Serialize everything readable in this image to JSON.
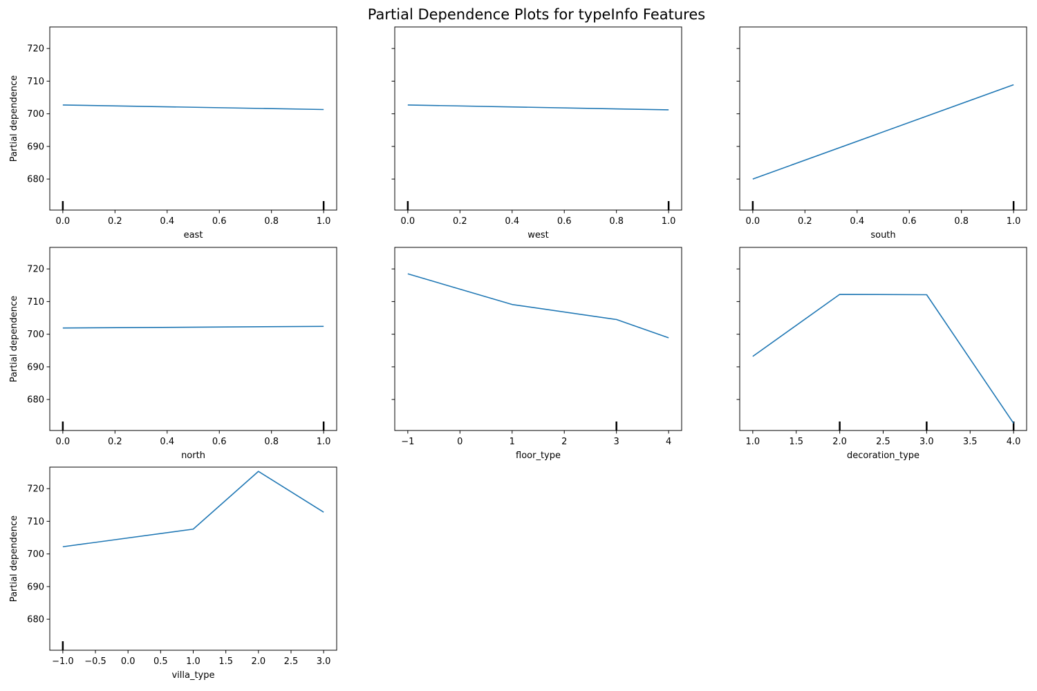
{
  "title": "Partial Dependence Plots for typeInfo Features",
  "chart_data": [
    {
      "type": "line",
      "xlabel": "east",
      "ylabel": "Partial dependence",
      "x": [
        0.0,
        1.0
      ],
      "y": [
        702.7,
        701.3
      ],
      "rug": [
        0.0,
        1.0
      ],
      "xlim": [
        -0.05,
        1.05
      ],
      "ylim": [
        670.5,
        726.6
      ],
      "xticks": [
        0.0,
        0.2,
        0.4,
        0.6,
        0.8,
        1.0
      ],
      "xtick_labels": [
        "0.0",
        "0.2",
        "0.4",
        "0.6",
        "0.8",
        "1.0"
      ],
      "yticks": [
        680,
        690,
        700,
        710,
        720
      ],
      "ytick_labels": [
        "680",
        "690",
        "700",
        "710",
        "720"
      ],
      "color": "#1f77b4"
    },
    {
      "type": "line",
      "xlabel": "west",
      "ylabel": "",
      "x": [
        0.0,
        1.0
      ],
      "y": [
        702.7,
        701.2
      ],
      "rug": [
        0.0,
        1.0
      ],
      "xlim": [
        -0.05,
        1.05
      ],
      "ylim": [
        670.5,
        726.6
      ],
      "xticks": [
        0.0,
        0.2,
        0.4,
        0.6,
        0.8,
        1.0
      ],
      "xtick_labels": [
        "0.0",
        "0.2",
        "0.4",
        "0.6",
        "0.8",
        "1.0"
      ],
      "yticks": [
        680,
        690,
        700,
        710,
        720
      ],
      "ytick_labels": [],
      "color": "#1f77b4"
    },
    {
      "type": "line",
      "xlabel": "south",
      "ylabel": "",
      "x": [
        0.0,
        1.0
      ],
      "y": [
        680.0,
        708.9
      ],
      "rug": [
        0.0,
        1.0
      ],
      "xlim": [
        -0.05,
        1.05
      ],
      "ylim": [
        670.5,
        726.6
      ],
      "xticks": [
        0.0,
        0.2,
        0.4,
        0.6,
        0.8,
        1.0
      ],
      "xtick_labels": [
        "0.0",
        "0.2",
        "0.4",
        "0.6",
        "0.8",
        "1.0"
      ],
      "yticks": [
        680,
        690,
        700,
        710,
        720
      ],
      "ytick_labels": [],
      "color": "#1f77b4"
    },
    {
      "type": "line",
      "xlabel": "north",
      "ylabel": "Partial dependence",
      "x": [
        0.0,
        1.0
      ],
      "y": [
        701.9,
        702.4
      ],
      "rug": [
        0.0,
        1.0
      ],
      "xlim": [
        -0.05,
        1.05
      ],
      "ylim": [
        670.5,
        726.6
      ],
      "xticks": [
        0.0,
        0.2,
        0.4,
        0.6,
        0.8,
        1.0
      ],
      "xtick_labels": [
        "0.0",
        "0.2",
        "0.4",
        "0.6",
        "0.8",
        "1.0"
      ],
      "yticks": [
        680,
        690,
        700,
        710,
        720
      ],
      "ytick_labels": [
        "680",
        "690",
        "700",
        "710",
        "720"
      ],
      "color": "#1f77b4"
    },
    {
      "type": "line",
      "xlabel": "floor_type",
      "ylabel": "",
      "x": [
        -1,
        1,
        3,
        4
      ],
      "y": [
        718.5,
        709.1,
        704.5,
        698.9
      ],
      "rug": [
        3
      ],
      "xlim": [
        -1.25,
        4.25
      ],
      "ylim": [
        670.5,
        726.6
      ],
      "xticks": [
        -1,
        0,
        1,
        2,
        3,
        4
      ],
      "xtick_labels": [
        "−1",
        "0",
        "1",
        "2",
        "3",
        "4"
      ],
      "yticks": [
        680,
        690,
        700,
        710,
        720
      ],
      "ytick_labels": [],
      "color": "#1f77b4"
    },
    {
      "type": "line",
      "xlabel": "decoration_type",
      "ylabel": "",
      "x": [
        1.0,
        2.0,
        3.0,
        4.0
      ],
      "y": [
        693.2,
        712.2,
        712.1,
        672.7
      ],
      "rug": [
        2.0,
        3.0,
        4.0
      ],
      "xlim": [
        0.85,
        4.15
      ],
      "ylim": [
        670.5,
        726.6
      ],
      "xticks": [
        1.0,
        1.5,
        2.0,
        2.5,
        3.0,
        3.5,
        4.0
      ],
      "xtick_labels": [
        "1.0",
        "1.5",
        "2.0",
        "2.5",
        "3.0",
        "3.5",
        "4.0"
      ],
      "yticks": [
        680,
        690,
        700,
        710,
        720
      ],
      "ytick_labels": [],
      "color": "#1f77b4"
    },
    {
      "type": "line",
      "xlabel": "villa_type",
      "ylabel": "Partial dependence",
      "x": [
        -1.0,
        1.0,
        2.0,
        3.0
      ],
      "y": [
        702.2,
        707.6,
        725.3,
        712.8
      ],
      "rug": [
        -1.0
      ],
      "xlim": [
        -1.2,
        3.2
      ],
      "ylim": [
        670.5,
        726.6
      ],
      "xticks": [
        -1.0,
        -0.5,
        0.0,
        0.5,
        1.0,
        1.5,
        2.0,
        2.5,
        3.0
      ],
      "xtick_labels": [
        "−1.0",
        "−0.5",
        "0.0",
        "0.5",
        "1.0",
        "1.5",
        "2.0",
        "2.5",
        "3.0"
      ],
      "yticks": [
        680,
        690,
        700,
        710,
        720
      ],
      "ytick_labels": [
        "680",
        "690",
        "700",
        "710",
        "720"
      ],
      "color": "#1f77b4"
    }
  ]
}
